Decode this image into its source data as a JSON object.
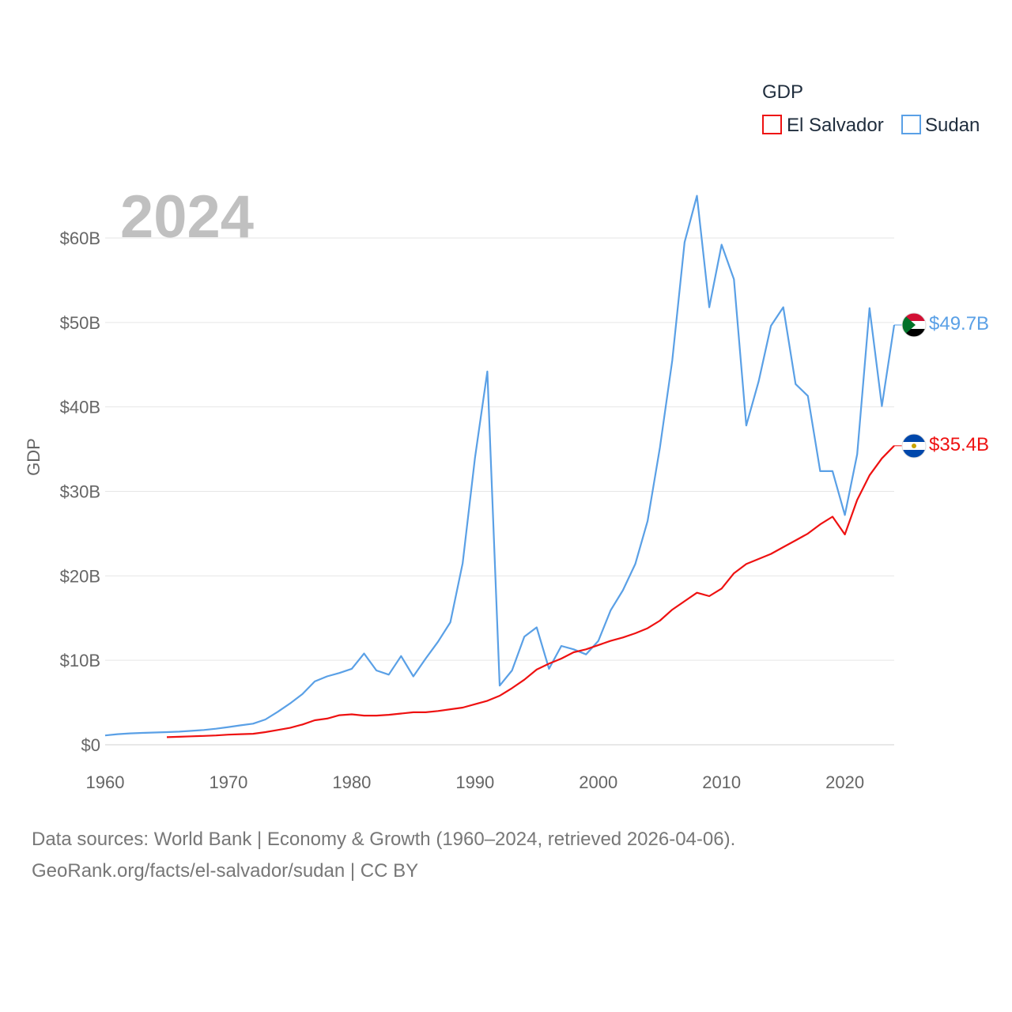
{
  "chart_data": {
    "type": "line",
    "title": "GDP",
    "ylabel": "GDP",
    "xlabel": "",
    "year_label": "2024",
    "xlim": [
      1960,
      2024
    ],
    "ylim": [
      0,
      60
    ],
    "x_ticks": [
      "1960",
      "1970",
      "1980",
      "1990",
      "2000",
      "2010",
      "2020"
    ],
    "y_ticks": [
      "$0",
      "$10B",
      "$20B",
      "$30B",
      "$40B",
      "$50B",
      "$60B"
    ],
    "legend_position": "top-right",
    "grid": true,
    "series": [
      {
        "name": "El Salvador",
        "color": "#ee1111",
        "end_label": "$35.4B",
        "x": [
          1965,
          1966,
          1967,
          1968,
          1969,
          1970,
          1971,
          1972,
          1973,
          1974,
          1975,
          1976,
          1977,
          1978,
          1979,
          1980,
          1981,
          1982,
          1983,
          1984,
          1985,
          1986,
          1987,
          1988,
          1989,
          1990,
          1991,
          1992,
          1993,
          1994,
          1995,
          1996,
          1997,
          1998,
          1999,
          2000,
          2001,
          2002,
          2003,
          2004,
          2005,
          2006,
          2007,
          2008,
          2009,
          2010,
          2011,
          2012,
          2013,
          2014,
          2015,
          2016,
          2017,
          2018,
          2019,
          2020,
          2021,
          2022,
          2023,
          2024
        ],
        "values": [
          0.9,
          0.95,
          1.0,
          1.05,
          1.1,
          1.2,
          1.25,
          1.3,
          1.5,
          1.75,
          2.0,
          2.4,
          2.9,
          3.1,
          3.5,
          3.6,
          3.45,
          3.45,
          3.55,
          3.7,
          3.85,
          3.85,
          4.0,
          4.2,
          4.4,
          4.8,
          5.2,
          5.8,
          6.7,
          7.7,
          8.9,
          9.6,
          10.2,
          10.95,
          11.3,
          11.8,
          12.3,
          12.7,
          13.2,
          13.8,
          14.7,
          16.0,
          17.0,
          18.0,
          17.6,
          18.5,
          20.3,
          21.4,
          22.0,
          22.6,
          23.4,
          24.2,
          25.0,
          26.1,
          27.0,
          24.9,
          29.0,
          31.9,
          33.9,
          35.4
        ]
      },
      {
        "name": "Sudan",
        "color": "#5aa0e6",
        "end_label": "$49.7B",
        "x": [
          1960,
          1961,
          1962,
          1963,
          1964,
          1965,
          1966,
          1967,
          1968,
          1969,
          1970,
          1971,
          1972,
          1973,
          1974,
          1975,
          1976,
          1977,
          1978,
          1979,
          1980,
          1981,
          1982,
          1983,
          1984,
          1985,
          1986,
          1987,
          1988,
          1989,
          1990,
          1991,
          1992,
          1993,
          1994,
          1995,
          1996,
          1997,
          1998,
          1999,
          2000,
          2001,
          2002,
          2003,
          2004,
          2005,
          2006,
          2007,
          2008,
          2009,
          2010,
          2011,
          2012,
          2013,
          2014,
          2015,
          2016,
          2017,
          2018,
          2019,
          2020,
          2021,
          2022,
          2023,
          2024
        ],
        "values": [
          1.1,
          1.25,
          1.35,
          1.4,
          1.45,
          1.5,
          1.55,
          1.65,
          1.75,
          1.9,
          2.1,
          2.3,
          2.5,
          3.0,
          3.9,
          4.9,
          6.0,
          7.5,
          8.1,
          8.5,
          9.0,
          10.8,
          8.8,
          8.3,
          10.5,
          8.1,
          10.2,
          12.2,
          14.5,
          21.5,
          34.0,
          44.2,
          7.0,
          8.8,
          12.8,
          13.9,
          9.0,
          11.7,
          11.3,
          10.7,
          12.3,
          15.9,
          18.3,
          21.4,
          26.5,
          35.2,
          45.5,
          59.5,
          65.0,
          51.8,
          59.2,
          55.1,
          37.8,
          43.0,
          49.6,
          51.8,
          42.7,
          41.3,
          32.4,
          32.4,
          27.2,
          34.4,
          51.7,
          40.1,
          49.7
        ]
      }
    ]
  },
  "footer": {
    "line1": "Data sources: World Bank | Economy & Growth (1960–2024, retrieved 2026-04-06).",
    "line2": "GeoRank.org/facts/el-salvador/sudan | CC BY"
  }
}
